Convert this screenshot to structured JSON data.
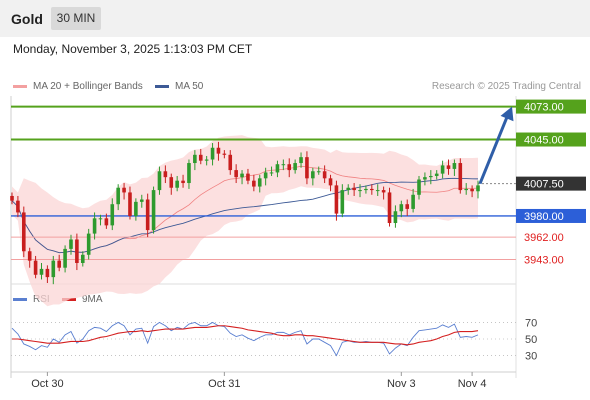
{
  "header": {
    "instrument": "Gold",
    "timeframe": "30 MIN"
  },
  "datetime": "Monday, November 3, 2025 1:13:03 PM CET",
  "legend": {
    "bollinger": "MA 20 + Bollinger Bands",
    "ma50": "MA 50",
    "credit": "Research © 2025 Trading Central",
    "rsi": "RSI",
    "rsi_ma": "9MA"
  },
  "colors": {
    "target": "#55a21c",
    "pivot": "#2c5fd8",
    "support": "#e02020",
    "bollinger": "#f08080",
    "ma50": "#3d5a96",
    "up": "#2e9a2e",
    "down": "#c81e1e",
    "current": "#333333",
    "arrow": "#2f5ea8",
    "rsi": "#5a7fd0",
    "rsi_ma": "#d42020"
  },
  "chart_data": [
    {
      "type": "candlestick",
      "levels": [
        {
          "label": "4073.00",
          "value": 4073.0,
          "kind": "target"
        },
        {
          "label": "4045.00",
          "value": 4045.0,
          "kind": "target"
        },
        {
          "label": "4007.50",
          "value": 4007.5,
          "kind": "current"
        },
        {
          "label": "3980.00",
          "value": 3980.0,
          "kind": "pivot"
        },
        {
          "label": "3962.00",
          "value": 3962.0,
          "kind": "support"
        },
        {
          "label": "3943.00",
          "value": 3943.0,
          "kind": "support"
        }
      ],
      "projection": {
        "from": 4007.5,
        "to": 4073.0
      },
      "candle_count": 80,
      "closes": [
        3993,
        3983,
        3950,
        3942,
        3930,
        3935,
        3928,
        3942,
        3936,
        3952,
        3960,
        3940,
        3947,
        3965,
        3978,
        3978,
        3972,
        3990,
        4004,
        4000,
        3980,
        3992,
        3994,
        3968,
        4002,
        4018,
        4013,
        4004,
        4010,
        4008,
        4025,
        4032,
        4027,
        4028,
        4038,
        4033,
        4032,
        4019,
        4013,
        4016,
        4010,
        4005,
        4012,
        4017,
        4017,
        4024,
        4024,
        4019,
        4025,
        4030,
        4012,
        4018,
        4018,
        4012,
        4006,
        3982,
        4002,
        4004,
        4002,
        4002,
        4003,
        4002,
        4002,
        4000,
        3974,
        3984,
        3990,
        3986,
        3998,
        4011,
        4013,
        4014,
        4016,
        4023,
        4020,
        4025,
        4002,
        4003,
        4001,
        4006
      ],
      "x_ticks": [
        "Oct 30",
        "Oct 31",
        "Nov 3",
        "Nov 4"
      ],
      "ylim": [
        3923,
        4082
      ]
    },
    {
      "type": "line",
      "title": "RSI",
      "y_ticks": [
        "70",
        "50",
        "30"
      ],
      "ylim": [
        15,
        85
      ],
      "series": [
        {
          "name": "RSI",
          "values": [
            63,
            56,
            44,
            41,
            37,
            42,
            40,
            50,
            46,
            55,
            59,
            45,
            50,
            60,
            64,
            63,
            59,
            66,
            70,
            66,
            55,
            62,
            63,
            45,
            65,
            70,
            66,
            60,
            64,
            62,
            68,
            70,
            66,
            66,
            70,
            66,
            65,
            57,
            53,
            55,
            51,
            48,
            52,
            55,
            55,
            58,
            58,
            55,
            58,
            60,
            44,
            50,
            50,
            46,
            42,
            30,
            46,
            48,
            46,
            46,
            47,
            46,
            46,
            45,
            32,
            39,
            44,
            42,
            52,
            60,
            61,
            62,
            63,
            67,
            64,
            68,
            52,
            53,
            52,
            55
          ]
        },
        {
          "name": "9MA",
          "values": [
            50,
            50,
            49,
            48,
            47,
            46,
            45,
            45,
            45,
            46,
            47,
            47,
            47,
            48,
            50,
            52,
            53,
            55,
            57,
            58,
            59,
            59,
            60,
            59,
            60,
            61,
            62,
            62,
            62,
            62,
            63,
            64,
            64,
            64,
            65,
            66,
            66,
            65,
            64,
            63,
            61,
            60,
            59,
            58,
            57,
            55,
            54,
            54,
            55,
            55,
            54,
            54,
            53,
            52,
            51,
            50,
            49,
            48,
            47,
            46,
            46,
            46,
            46,
            46,
            45,
            44,
            44,
            43,
            44,
            46,
            47,
            48,
            50,
            53,
            55,
            58,
            59,
            59,
            59,
            60
          ]
        }
      ]
    }
  ]
}
